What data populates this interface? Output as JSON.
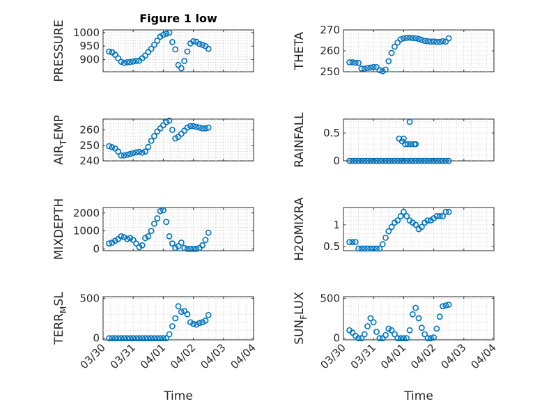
{
  "chart_data": [
    {
      "type": "scatter",
      "title": "Figure 1 low",
      "ylabel": "PRESSURE",
      "xlabel": "",
      "ylim": [
        855,
        1010
      ],
      "yticks": [
        900,
        950,
        1000
      ],
      "xticks": [
        "03/30",
        "03/31",
        "04/01",
        "04/02",
        "04/03",
        "04/04"
      ],
      "grid": true,
      "x": [
        0.2,
        0.3,
        0.4,
        0.5,
        0.6,
        0.7,
        0.8,
        0.9,
        1.0,
        1.1,
        1.2,
        1.3,
        1.4,
        1.5,
        1.6,
        1.7,
        1.8,
        1.9,
        2.0,
        2.1,
        2.2,
        2.3,
        2.4,
        2.5,
        2.6,
        2.7,
        2.8,
        2.9,
        3.0,
        3.1,
        3.2,
        3.3,
        3.4,
        3.5
      ],
      "y": [
        930,
        927,
        918,
        905,
        892,
        888,
        890,
        891,
        893,
        895,
        896,
        905,
        915,
        928,
        940,
        955,
        970,
        985,
        992,
        996,
        1000,
        965,
        938,
        880,
        868,
        895,
        930,
        960,
        968,
        966,
        958,
        955,
        950,
        940
      ]
    },
    {
      "type": "scatter",
      "title": "",
      "ylabel": "THETA",
      "xlabel": "",
      "ylim": [
        250,
        270
      ],
      "yticks": [
        250,
        260,
        270
      ],
      "xticks": [
        "03/30",
        "03/31",
        "04/01",
        "04/02",
        "04/03",
        "04/04"
      ],
      "grid": true,
      "x": [
        0.2,
        0.3,
        0.4,
        0.5,
        0.6,
        0.7,
        0.8,
        0.9,
        1.0,
        1.1,
        1.2,
        1.3,
        1.4,
        1.5,
        1.6,
        1.7,
        1.8,
        1.9,
        2.0,
        2.1,
        2.2,
        2.3,
        2.4,
        2.5,
        2.6,
        2.7,
        2.8,
        2.9,
        3.0,
        3.1,
        3.2,
        3.3,
        3.4,
        3.5
      ],
      "y": [
        254.5,
        254.5,
        254.3,
        254.2,
        251.5,
        251.5,
        251.8,
        252,
        252.3,
        252.2,
        250.8,
        250.3,
        251,
        255,
        259,
        262,
        264,
        265.5,
        266,
        266.2,
        266.3,
        266.1,
        266,
        265.7,
        265.2,
        264.8,
        264.6,
        264.4,
        264.5,
        264.3,
        264.3,
        264.6,
        264.4,
        266
      ]
    },
    {
      "type": "scatter",
      "title": "",
      "ylabel": "AIR_TEMP",
      "xlabel": "",
      "ylim": [
        240,
        267
      ],
      "yticks": [
        240,
        250,
        260
      ],
      "xticks": [
        "03/30",
        "03/31",
        "04/01",
        "04/02",
        "04/03",
        "04/04"
      ],
      "grid": true,
      "x": [
        0.2,
        0.3,
        0.4,
        0.5,
        0.6,
        0.7,
        0.8,
        0.9,
        1.0,
        1.1,
        1.2,
        1.3,
        1.4,
        1.5,
        1.6,
        1.7,
        1.8,
        1.9,
        2.0,
        2.1,
        2.2,
        2.3,
        2.4,
        2.5,
        2.6,
        2.7,
        2.8,
        2.9,
        3.0,
        3.1,
        3.2,
        3.3,
        3.4,
        3.5
      ],
      "y": [
        249.5,
        248.8,
        248,
        246,
        243.5,
        243.5,
        244,
        244.5,
        245,
        245.5,
        245.8,
        245.3,
        246,
        249,
        253,
        256,
        259,
        261,
        263,
        265,
        266,
        260,
        254.5,
        255.5,
        257.5,
        259.5,
        261.5,
        262.5,
        262.5,
        262,
        261.5,
        261,
        261,
        261.5
      ]
    },
    {
      "type": "scatter",
      "title": "",
      "ylabel": "RAINFALL",
      "xlabel": "",
      "ylim": [
        0,
        0.75
      ],
      "yticks": [
        0,
        0.5
      ],
      "xticks": [
        "03/30",
        "03/31",
        "04/01",
        "04/02",
        "04/03",
        "04/04"
      ],
      "grid": true,
      "x": [
        0.2,
        0.3,
        0.4,
        0.5,
        0.6,
        0.7,
        0.8,
        0.9,
        1.0,
        1.1,
        1.2,
        1.3,
        1.4,
        1.5,
        1.6,
        1.7,
        1.8,
        1.9,
        2.0,
        2.1,
        2.2,
        2.3,
        2.4,
        2.5,
        2.6,
        2.7,
        2.8,
        2.9,
        3.0,
        3.1,
        3.2,
        3.3,
        3.4,
        3.5,
        1.85,
        1.95,
        2.0,
        2.05,
        2.15,
        2.2,
        2.25,
        2.35,
        2.4
      ],
      "y": [
        0,
        0,
        0,
        0,
        0,
        0,
        0,
        0,
        0,
        0,
        0,
        0,
        0,
        0,
        0,
        0,
        0,
        0,
        0,
        0,
        0,
        0,
        0,
        0,
        0,
        0,
        0,
        0,
        0,
        0,
        0,
        0,
        0,
        0,
        0.4,
        0.35,
        0.4,
        0.3,
        0.3,
        0.7,
        0.3,
        0.3,
        0.3
      ]
    },
    {
      "type": "scatter",
      "title": "",
      "ylabel": "MIXDEPTH",
      "xlabel": "",
      "ylim": [
        -100,
        2300
      ],
      "yticks": [
        0,
        1000,
        2000
      ],
      "xticks": [
        "03/30",
        "03/31",
        "04/01",
        "04/02",
        "04/03",
        "04/04"
      ],
      "grid": true,
      "x": [
        0.2,
        0.3,
        0.4,
        0.5,
        0.6,
        0.7,
        0.8,
        0.9,
        1.0,
        1.1,
        1.2,
        1.3,
        1.4,
        1.5,
        1.6,
        1.7,
        1.8,
        1.9,
        2.0,
        2.1,
        2.2,
        2.3,
        2.4,
        2.5,
        2.6,
        2.7,
        2.8,
        2.9,
        3.0,
        3.1,
        3.2,
        3.3,
        3.4,
        3.5
      ],
      "y": [
        300,
        350,
        450,
        550,
        700,
        650,
        550,
        600,
        500,
        300,
        100,
        200,
        600,
        700,
        1000,
        1400,
        1700,
        2100,
        2150,
        1500,
        700,
        300,
        50,
        150,
        350,
        50,
        0,
        0,
        0,
        0,
        50,
        200,
        500,
        900
      ]
    },
    {
      "type": "scatter",
      "title": "",
      "ylabel": "H2OMIXRA",
      "xlabel": "",
      "ylim": [
        0.4,
        1.4
      ],
      "yticks": [
        0.5,
        1
      ],
      "xticks": [
        "03/30",
        "03/31",
        "04/01",
        "04/02",
        "04/03",
        "04/04"
      ],
      "grid": true,
      "x": [
        0.2,
        0.3,
        0.4,
        0.5,
        0.6,
        0.7,
        0.8,
        0.9,
        1.0,
        1.1,
        1.2,
        1.3,
        1.4,
        1.5,
        1.6,
        1.7,
        1.8,
        1.9,
        2.0,
        2.1,
        2.2,
        2.3,
        2.4,
        2.5,
        2.6,
        2.7,
        2.8,
        2.9,
        3.0,
        3.1,
        3.2,
        3.3,
        3.4,
        3.5
      ],
      "y": [
        0.6,
        0.6,
        0.6,
        0.45,
        0.45,
        0.45,
        0.45,
        0.45,
        0.45,
        0.45,
        0.45,
        0.55,
        0.7,
        0.85,
        0.95,
        1.05,
        1.1,
        1.2,
        1.3,
        1.2,
        1.1,
        1.05,
        1.0,
        0.9,
        0.95,
        1.05,
        1.1,
        1.1,
        1.15,
        1.2,
        1.2,
        1.2,
        1.3,
        1.3
      ]
    },
    {
      "type": "scatter",
      "title": "",
      "ylabel": "TERR_MSL",
      "xlabel": "Time",
      "ylim": [
        -20,
        520
      ],
      "yticks": [
        0,
        500
      ],
      "xticks": [
        "03/30",
        "03/31",
        "04/01",
        "04/02",
        "04/03",
        "04/04"
      ],
      "grid": true,
      "x": [
        0.2,
        0.3,
        0.4,
        0.5,
        0.6,
        0.7,
        0.8,
        0.9,
        1.0,
        1.1,
        1.2,
        1.3,
        1.4,
        1.5,
        1.6,
        1.7,
        1.8,
        1.9,
        2.0,
        2.1,
        2.2,
        2.3,
        2.4,
        2.5,
        2.6,
        2.7,
        2.8,
        2.9,
        3.0,
        3.1,
        3.2,
        3.3,
        3.4,
        3.5
      ],
      "y": [
        0,
        0,
        0,
        0,
        0,
        0,
        0,
        0,
        0,
        0,
        0,
        0,
        0,
        0,
        0,
        0,
        0,
        0,
        0,
        0,
        50,
        150,
        250,
        400,
        330,
        340,
        300,
        200,
        180,
        170,
        190,
        200,
        220,
        290
      ]
    },
    {
      "type": "scatter",
      "title": "",
      "ylabel": "SUN_FLUX",
      "xlabel": "Time",
      "ylim": [
        -20,
        520
      ],
      "yticks": [
        0,
        500
      ],
      "xticks": [
        "03/30",
        "03/31",
        "04/01",
        "04/02",
        "04/03",
        "04/04"
      ],
      "grid": true,
      "x": [
        0.2,
        0.3,
        0.4,
        0.5,
        0.6,
        0.7,
        0.8,
        0.9,
        1.0,
        1.1,
        1.2,
        1.3,
        1.4,
        1.5,
        1.6,
        1.7,
        1.8,
        1.9,
        2.0,
        2.1,
        2.2,
        2.3,
        2.4,
        2.5,
        2.6,
        2.7,
        2.8,
        2.9,
        3.0,
        3.1,
        3.2,
        3.3,
        3.4,
        3.5
      ],
      "y": [
        100,
        70,
        30,
        0,
        0,
        50,
        150,
        250,
        200,
        80,
        0,
        0,
        40,
        120,
        100,
        50,
        0,
        0,
        0,
        0,
        100,
        300,
        380,
        250,
        130,
        50,
        0,
        0,
        10,
        120,
        270,
        400,
        410,
        420
      ]
    }
  ]
}
